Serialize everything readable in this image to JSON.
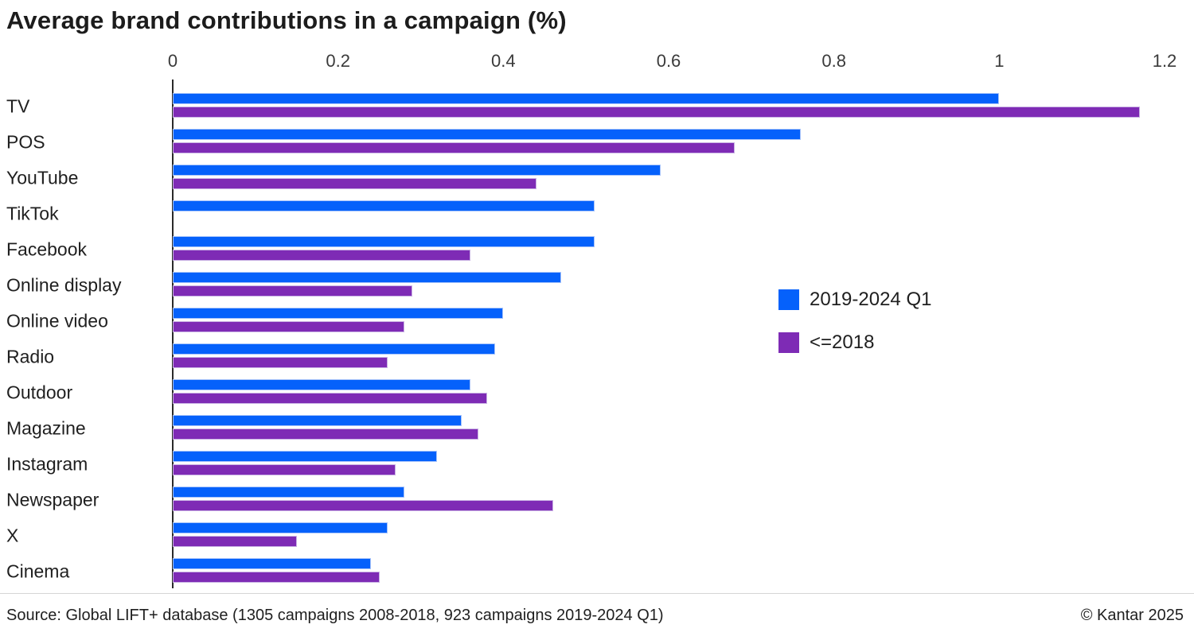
{
  "title": "Average brand contributions in a campaign (%)",
  "chart_data": {
    "type": "bar",
    "orientation": "horizontal",
    "title": "Average brand contributions in a campaign (%)",
    "xlabel": "",
    "ylabel": "",
    "xlim": [
      0,
      1.2
    ],
    "xticks": [
      0,
      0.2,
      0.4,
      0.6,
      0.8,
      1,
      1.2
    ],
    "xtick_labels": [
      "0",
      "0.2",
      "0.4",
      "0.6",
      "0.8",
      "1",
      "1.2"
    ],
    "grid": false,
    "legend_position": "middle-right",
    "categories": [
      "TV",
      "POS",
      "YouTube",
      "TikTok",
      "Facebook",
      "Online display",
      "Online video",
      "Radio",
      "Outdoor",
      "Magazine",
      "Instagram",
      "Newspaper",
      "X",
      "Cinema"
    ],
    "series": [
      {
        "name": "2019-2024 Q1",
        "color": "#0561fb",
        "border_color": "#a8c4fa",
        "values": [
          1.0,
          0.76,
          0.59,
          0.51,
          0.51,
          0.47,
          0.4,
          0.39,
          0.36,
          0.35,
          0.32,
          0.28,
          0.26,
          0.24
        ]
      },
      {
        "name": "<=2018",
        "color": "#7e2bb5",
        "border_color": "#c9b2e4",
        "values": [
          1.17,
          0.68,
          0.44,
          null,
          0.36,
          0.29,
          0.28,
          0.26,
          0.38,
          0.37,
          0.27,
          0.46,
          0.15,
          0.25
        ]
      }
    ]
  },
  "footer": {
    "source": "Source: Global LIFT+ database (1305 campaigns 2008-2018, 923 campaigns 2019-2024 Q1)",
    "copyright": "© Kantar 2025"
  }
}
